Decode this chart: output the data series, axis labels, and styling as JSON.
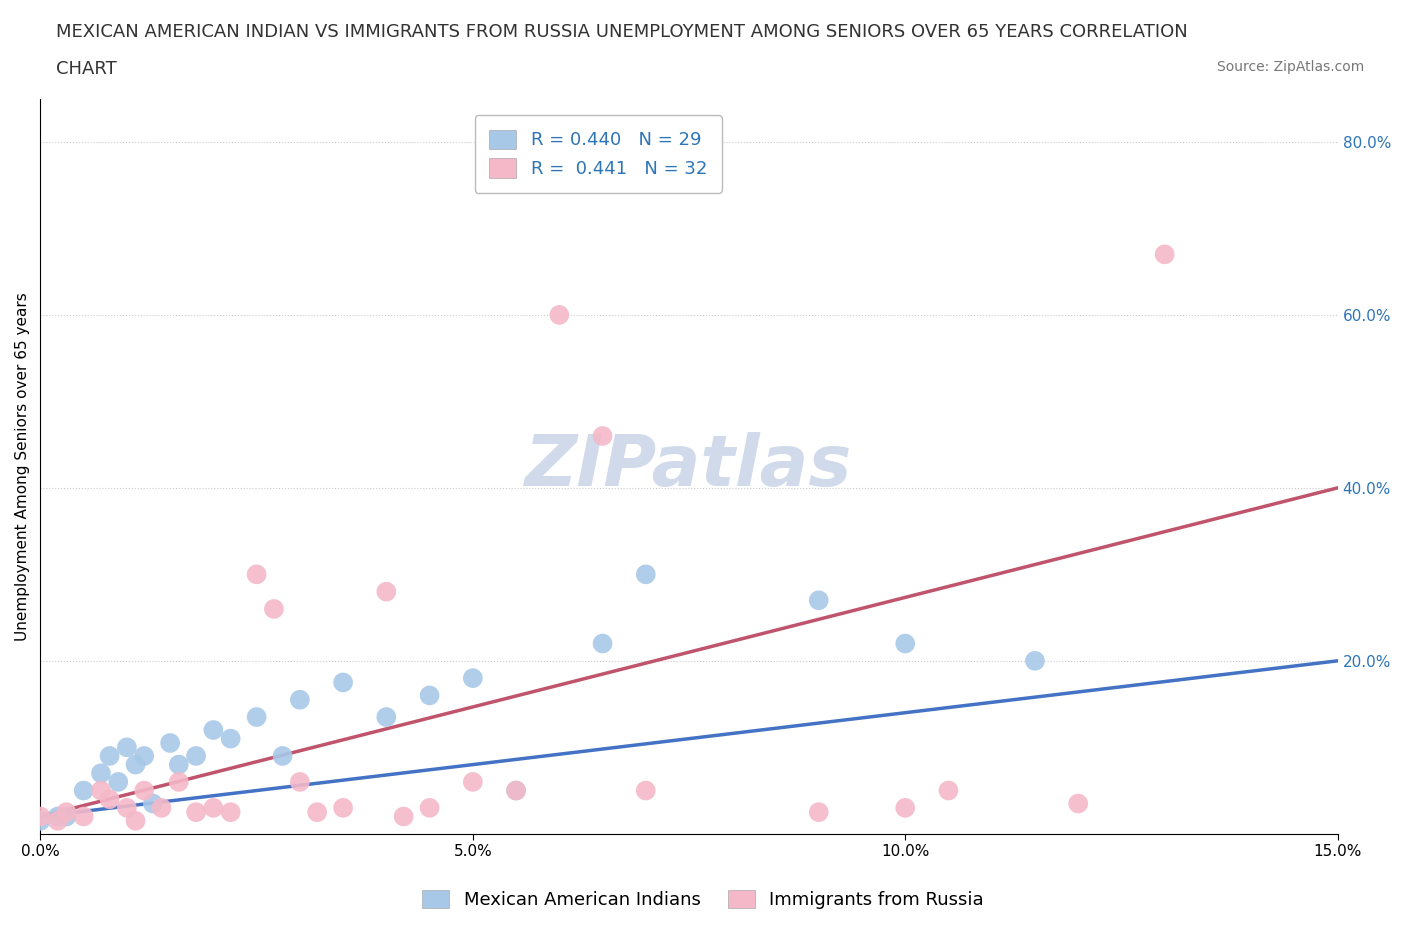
{
  "title_line1": "MEXICAN AMERICAN INDIAN VS IMMIGRANTS FROM RUSSIA UNEMPLOYMENT AMONG SENIORS OVER 65 YEARS CORRELATION",
  "title_line2": "CHART",
  "source": "Source: ZipAtlas.com",
  "ylabel": "Unemployment Among Seniors over 65 years",
  "watermark": "ZIPatlas",
  "series1_name": "Mexican American Indians",
  "series1_color": "#a8c8e8",
  "series1_line_color": "#4472c4",
  "series1_R": 0.44,
  "series1_N": 29,
  "series2_name": "Immigrants from Russia",
  "series2_color": "#f4b8c8",
  "series2_line_color": "#c0546c",
  "series2_R": 0.441,
  "series2_N": 32,
  "legend_text_color": "#2e75b6",
  "xlim": [
    0.0,
    0.15
  ],
  "ylim": [
    0.0,
    0.85
  ],
  "xticks": [
    0.0,
    0.05,
    0.1,
    0.15
  ],
  "yticks": [
    0.0,
    0.2,
    0.4,
    0.6,
    0.8
  ],
  "xtick_labels": [
    "0.0%",
    "5.0%",
    "10.0%",
    "15.0%"
  ],
  "right_ytick_labels": [
    "",
    "20.0%",
    "40.0%",
    "60.0%",
    "80.0%"
  ],
  "scatter1_x": [
    0.0,
    0.002,
    0.003,
    0.005,
    0.007,
    0.008,
    0.009,
    0.01,
    0.011,
    0.012,
    0.013,
    0.015,
    0.016,
    0.018,
    0.02,
    0.022,
    0.025,
    0.028,
    0.03,
    0.035,
    0.04,
    0.045,
    0.05,
    0.055,
    0.065,
    0.07,
    0.09,
    0.1,
    0.115
  ],
  "scatter1_y": [
    0.015,
    0.02,
    0.02,
    0.05,
    0.07,
    0.09,
    0.06,
    0.1,
    0.08,
    0.09,
    0.035,
    0.105,
    0.08,
    0.09,
    0.12,
    0.11,
    0.135,
    0.09,
    0.155,
    0.175,
    0.135,
    0.16,
    0.18,
    0.05,
    0.22,
    0.3,
    0.27,
    0.22,
    0.2
  ],
  "scatter2_x": [
    0.0,
    0.002,
    0.003,
    0.005,
    0.007,
    0.008,
    0.01,
    0.011,
    0.012,
    0.014,
    0.016,
    0.018,
    0.02,
    0.022,
    0.025,
    0.027,
    0.03,
    0.032,
    0.035,
    0.04,
    0.042,
    0.045,
    0.05,
    0.055,
    0.06,
    0.065,
    0.07,
    0.09,
    0.1,
    0.105,
    0.12,
    0.13
  ],
  "scatter2_y": [
    0.02,
    0.015,
    0.025,
    0.02,
    0.05,
    0.04,
    0.03,
    0.015,
    0.05,
    0.03,
    0.06,
    0.025,
    0.03,
    0.025,
    0.3,
    0.26,
    0.06,
    0.025,
    0.03,
    0.28,
    0.02,
    0.03,
    0.06,
    0.05,
    0.6,
    0.46,
    0.05,
    0.025,
    0.03,
    0.05,
    0.035,
    0.67
  ],
  "trendline1_x": [
    0.0,
    0.15
  ],
  "trendline1_y": [
    0.02,
    0.2
  ],
  "trendline2_x": [
    0.0,
    0.15
  ],
  "trendline2_y": [
    0.02,
    0.4
  ],
  "background_color": "#ffffff",
  "grid_color": "#cccccc",
  "title_fontsize": 13,
  "axis_label_fontsize": 11,
  "tick_fontsize": 11,
  "watermark_fontsize": 52,
  "watermark_color": "#c8d4e8",
  "legend_fontsize": 13,
  "source_fontsize": 10
}
